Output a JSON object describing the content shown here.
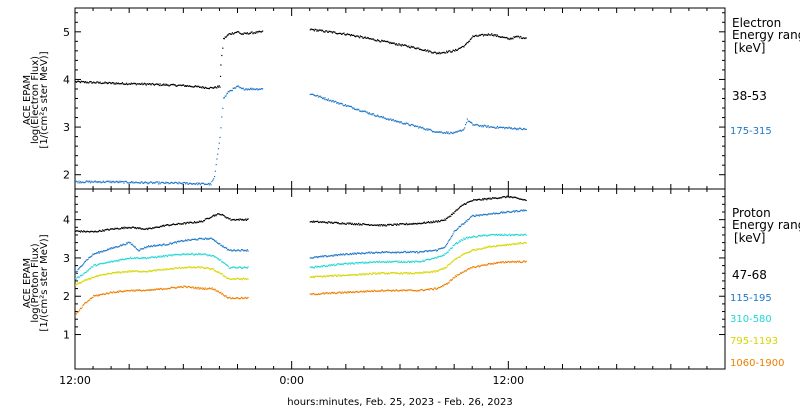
{
  "xaxis": {
    "label": "hours:minutes, Feb. 25, 2023 - Feb. 26, 2023",
    "ticks": [
      {
        "hour": 0,
        "label": "12:00"
      },
      {
        "hour": 12,
        "label": "0:00"
      },
      {
        "hour": 24,
        "label": "12:00"
      }
    ],
    "range": [
      0,
      36
    ]
  },
  "chart_data": [
    {
      "type": "line",
      "panel": "electron",
      "ylabel": [
        "ACE EPAM",
        "log(Electron Flux)",
        "[1/(cm²s ster MeV)]"
      ],
      "ylim": [
        1.7,
        5.5
      ],
      "yticks": [
        2,
        3,
        4,
        5
      ],
      "legend_title": [
        "Electron",
        "Energy range",
        "[keV]"
      ],
      "x_unit": "hours since Feb. 25, 2023 12:00",
      "series": [
        {
          "name": "38-53",
          "color": "#000000",
          "x": [
            0,
            2,
            4,
            6,
            7.5,
            8,
            8.05,
            8.2,
            8.5,
            9,
            9.2,
            9.6,
            10.4,
            10.45,
            11,
            13,
            15,
            17,
            19,
            20,
            21,
            21.6,
            22,
            23,
            24,
            24.5,
            24.7,
            25
          ],
          "y": [
            3.95,
            3.92,
            3.9,
            3.87,
            3.82,
            3.85,
            4.3,
            4.85,
            4.95,
            5.0,
            4.95,
            4.97,
            5.0,
            null,
            null,
            5.05,
            4.95,
            4.8,
            4.65,
            4.55,
            4.6,
            4.72,
            4.9,
            4.95,
            4.85,
            4.9,
            4.88,
            4.87
          ]
        },
        {
          "name": "175-315",
          "color": "#1f77c8",
          "x": [
            0,
            2,
            4,
            6,
            7.5,
            7.7,
            8,
            8.2,
            8.5,
            9,
            9.2,
            9.6,
            10.4,
            10.45,
            11,
            13,
            15,
            17,
            19,
            20,
            21,
            21.5,
            21.7,
            22,
            23,
            24,
            25
          ],
          "y": [
            1.85,
            1.85,
            1.83,
            1.82,
            1.8,
            1.95,
            2.8,
            3.6,
            3.75,
            3.85,
            3.8,
            3.8,
            3.8,
            null,
            null,
            3.7,
            3.45,
            3.2,
            3.0,
            2.9,
            2.87,
            2.95,
            3.15,
            3.05,
            3.0,
            2.98,
            2.95
          ]
        }
      ]
    },
    {
      "type": "line",
      "panel": "proton",
      "ylabel": [
        "ACE EPAM",
        "log(Proton Flux)",
        "[1/(cm²s ster MeV)]"
      ],
      "ylim": [
        0.1,
        4.8
      ],
      "yticks": [
        1,
        2,
        3,
        4
      ],
      "legend_title": [
        "Proton",
        "Energy range",
        "[keV]"
      ],
      "x_unit": "hours since Feb. 25, 2023 12:00",
      "series": [
        {
          "name": "47-68",
          "color": "#000000",
          "x": [
            0,
            1,
            2,
            3,
            4,
            5,
            6,
            7,
            7.6,
            8,
            8.4,
            8.6,
            9.6,
            9.65,
            11,
            13,
            15,
            17,
            19,
            20,
            20.5,
            21,
            21.5,
            22,
            23,
            24,
            25
          ],
          "y": [
            3.7,
            3.68,
            3.75,
            3.8,
            3.75,
            3.85,
            3.9,
            3.95,
            4.1,
            4.15,
            4.05,
            4.0,
            4.0,
            null,
            null,
            3.95,
            3.9,
            3.85,
            3.9,
            3.95,
            4.0,
            4.2,
            4.4,
            4.5,
            4.55,
            4.6,
            4.5
          ]
        },
        {
          "name": "115-195",
          "color": "#1f77c8",
          "x": [
            0,
            0.5,
            1,
            2,
            3,
            3.5,
            4,
            5,
            6,
            7,
            7.6,
            8,
            8.5,
            8.6,
            9.6,
            9.65,
            11,
            13,
            15,
            17,
            19,
            20,
            20.5,
            21,
            21.5,
            22,
            23,
            24,
            25
          ],
          "y": [
            2.6,
            2.9,
            3.1,
            3.25,
            3.4,
            3.2,
            3.3,
            3.35,
            3.45,
            3.5,
            3.5,
            3.35,
            3.2,
            3.2,
            3.2,
            null,
            null,
            3.0,
            3.1,
            3.15,
            3.15,
            3.2,
            3.3,
            3.7,
            3.9,
            4.1,
            4.15,
            4.2,
            4.25
          ]
        },
        {
          "name": "310-580",
          "color": "#22d6d6",
          "x": [
            0,
            0.5,
            1,
            2,
            3,
            4,
            5,
            6,
            7,
            7.6,
            8,
            8.5,
            8.6,
            9.6,
            9.65,
            11,
            13,
            15,
            17,
            19,
            20,
            20.5,
            21,
            21.5,
            22,
            23,
            24,
            25
          ],
          "y": [
            2.45,
            2.6,
            2.8,
            2.9,
            3.0,
            3.0,
            3.05,
            3.1,
            3.1,
            3.05,
            2.95,
            2.75,
            2.75,
            2.75,
            null,
            null,
            2.75,
            2.85,
            2.9,
            2.9,
            3.0,
            3.1,
            3.35,
            3.5,
            3.55,
            3.6,
            3.6,
            3.6
          ]
        },
        {
          "name": "795-1193",
          "color": "#d6d600",
          "x": [
            0,
            0.5,
            1,
            2,
            3,
            4,
            5,
            6,
            7,
            7.6,
            8,
            8.5,
            8.6,
            9.6,
            9.65,
            11,
            13,
            15,
            17,
            19,
            20,
            20.5,
            21,
            21.5,
            22,
            23,
            24,
            25
          ],
          "y": [
            2.3,
            2.4,
            2.5,
            2.6,
            2.65,
            2.65,
            2.7,
            2.75,
            2.75,
            2.7,
            2.6,
            2.45,
            2.45,
            2.45,
            null,
            null,
            2.5,
            2.55,
            2.6,
            2.6,
            2.65,
            2.75,
            2.95,
            3.1,
            3.2,
            3.3,
            3.35,
            3.4
          ]
        },
        {
          "name": "1060-1900",
          "color": "#ee7f00",
          "x": [
            0,
            0.5,
            1,
            2,
            3,
            4,
            5,
            6,
            7,
            7.6,
            8,
            8.5,
            8.6,
            9.6,
            9.65,
            11,
            13,
            15,
            17,
            19,
            20,
            20.5,
            21,
            21.5,
            22,
            23,
            24,
            25
          ],
          "y": [
            1.5,
            1.8,
            2.0,
            2.1,
            2.15,
            2.15,
            2.2,
            2.25,
            2.2,
            2.2,
            2.1,
            1.95,
            1.95,
            1.95,
            null,
            null,
            2.05,
            2.1,
            2.15,
            2.15,
            2.2,
            2.3,
            2.5,
            2.65,
            2.75,
            2.85,
            2.9,
            2.9
          ]
        }
      ]
    }
  ]
}
